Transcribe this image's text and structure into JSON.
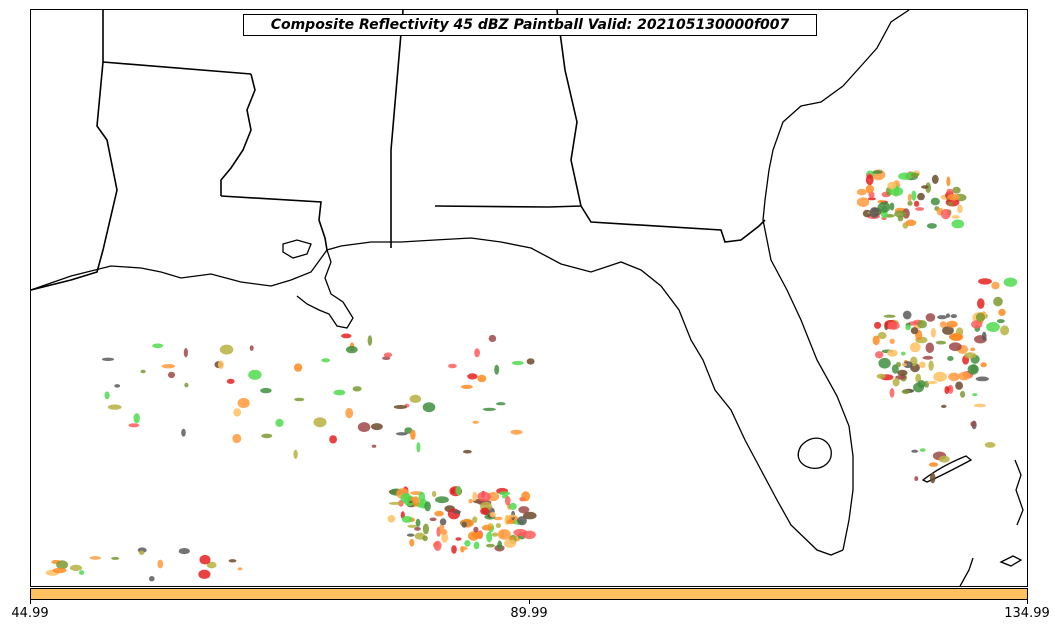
{
  "title": "Composite Reflectivity 45 dBZ Paintball Valid: 202105130000f007",
  "colorbar": {
    "color": "#ffc060",
    "min": 44.99,
    "max": 134.99,
    "tick_labels": [
      "44.99",
      "89.99",
      "134.99"
    ],
    "tick_values": [
      44.99,
      89.99,
      134.99
    ]
  },
  "colors": {
    "member_palette": [
      "#ff5c5c",
      "#ff9a3c",
      "#ffc060",
      "#5a5a5a",
      "#3f8f3f",
      "#7a9a30",
      "#b8b040",
      "#4fdc4f",
      "#a04848",
      "#e62020",
      "#6b4a2a",
      "#ff8a20"
    ]
  }
}
